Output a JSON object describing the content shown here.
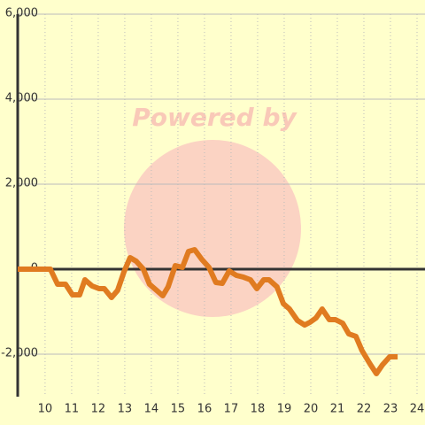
{
  "chart_data": {
    "type": "line",
    "watermark": "Powered by",
    "x": [
      8.97,
      10.2,
      10.47,
      10.77,
      11.03,
      11.3,
      11.5,
      11.77,
      12.03,
      12.23,
      12.5,
      12.73,
      12.97,
      13.2,
      13.43,
      13.7,
      13.93,
      14.2,
      14.43,
      14.63,
      14.9,
      15.17,
      15.4,
      15.63,
      15.9,
      16.17,
      16.43,
      16.67,
      16.93,
      17.2,
      17.47,
      17.73,
      17.97,
      18.23,
      18.43,
      18.73,
      18.97,
      19.2,
      19.5,
      19.77,
      19.97,
      20.2,
      20.43,
      20.7,
      20.93,
      21.2,
      21.43,
      21.7,
      21.93,
      22.23,
      22.47,
      22.7,
      22.97,
      23.27
    ],
    "series": [
      {
        "color": "#e07b20",
        "values": [
          0,
          0,
          -354,
          -354,
          -604,
          -604,
          -250,
          -396,
          -458,
          -458,
          -667,
          -500,
          -63,
          271,
          188,
          0,
          -354,
          -500,
          -625,
          -417,
          83,
          42,
          417,
          458,
          229,
          42,
          -313,
          -333,
          -42,
          -146,
          -188,
          -250,
          -458,
          -250,
          -250,
          -417,
          -813,
          -938,
          -1208,
          -1313,
          -1250,
          -1146,
          -938,
          -1188,
          -1188,
          -1271,
          -1521,
          -1583,
          -1917,
          -2229,
          -2458,
          -2250,
          -2063,
          -2063
        ]
      }
    ],
    "xlim": [
      8.97,
      24.3
    ],
    "ylim": [
      -3000,
      6000
    ],
    "xticks": [
      10,
      11,
      12,
      13,
      14,
      15,
      16,
      17,
      18,
      19,
      20,
      21,
      22,
      23,
      24
    ],
    "yticks": [
      {
        "value": -2000,
        "label": "-2,000"
      },
      0,
      {
        "value": 2000,
        "label": "2,000"
      },
      {
        "value": 4000,
        "label": "4,000"
      },
      {
        "value": 6000,
        "label": "6,000"
      }
    ],
    "grid": true
  }
}
